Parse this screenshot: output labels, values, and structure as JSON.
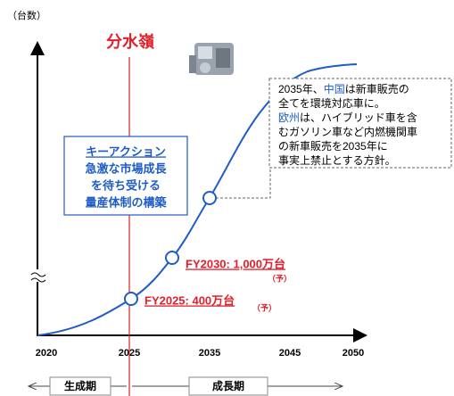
{
  "axis": {
    "y_label": "（台数）",
    "x_ticks": [
      "2020",
      "2025",
      "2035",
      "2045",
      "2050"
    ]
  },
  "watershed": "分水嶺",
  "milestones": [
    {
      "label": "FY2025: 400万台",
      "note": "（予）"
    },
    {
      "label": "FY2030: 1,000万台",
      "note": "（予）"
    }
  ],
  "key_action": {
    "title": "キーアクション",
    "lines": [
      "急激な市場成長",
      "を待ち受ける",
      "量産体制の構築"
    ]
  },
  "callout": {
    "lines": [
      [
        "2035年、",
        "中国",
        "は新車販売の"
      ],
      [
        "全てを環境対応車に。"
      ],
      [
        "欧州",
        "は、ハイブリッド車を含"
      ],
      [
        "むガソリン車など内燃機関車"
      ],
      [
        "の新車販売を2035年に"
      ],
      [
        "事実上禁止とする方針。"
      ]
    ]
  },
  "phases": [
    "生成期",
    "成長期"
  ]
}
